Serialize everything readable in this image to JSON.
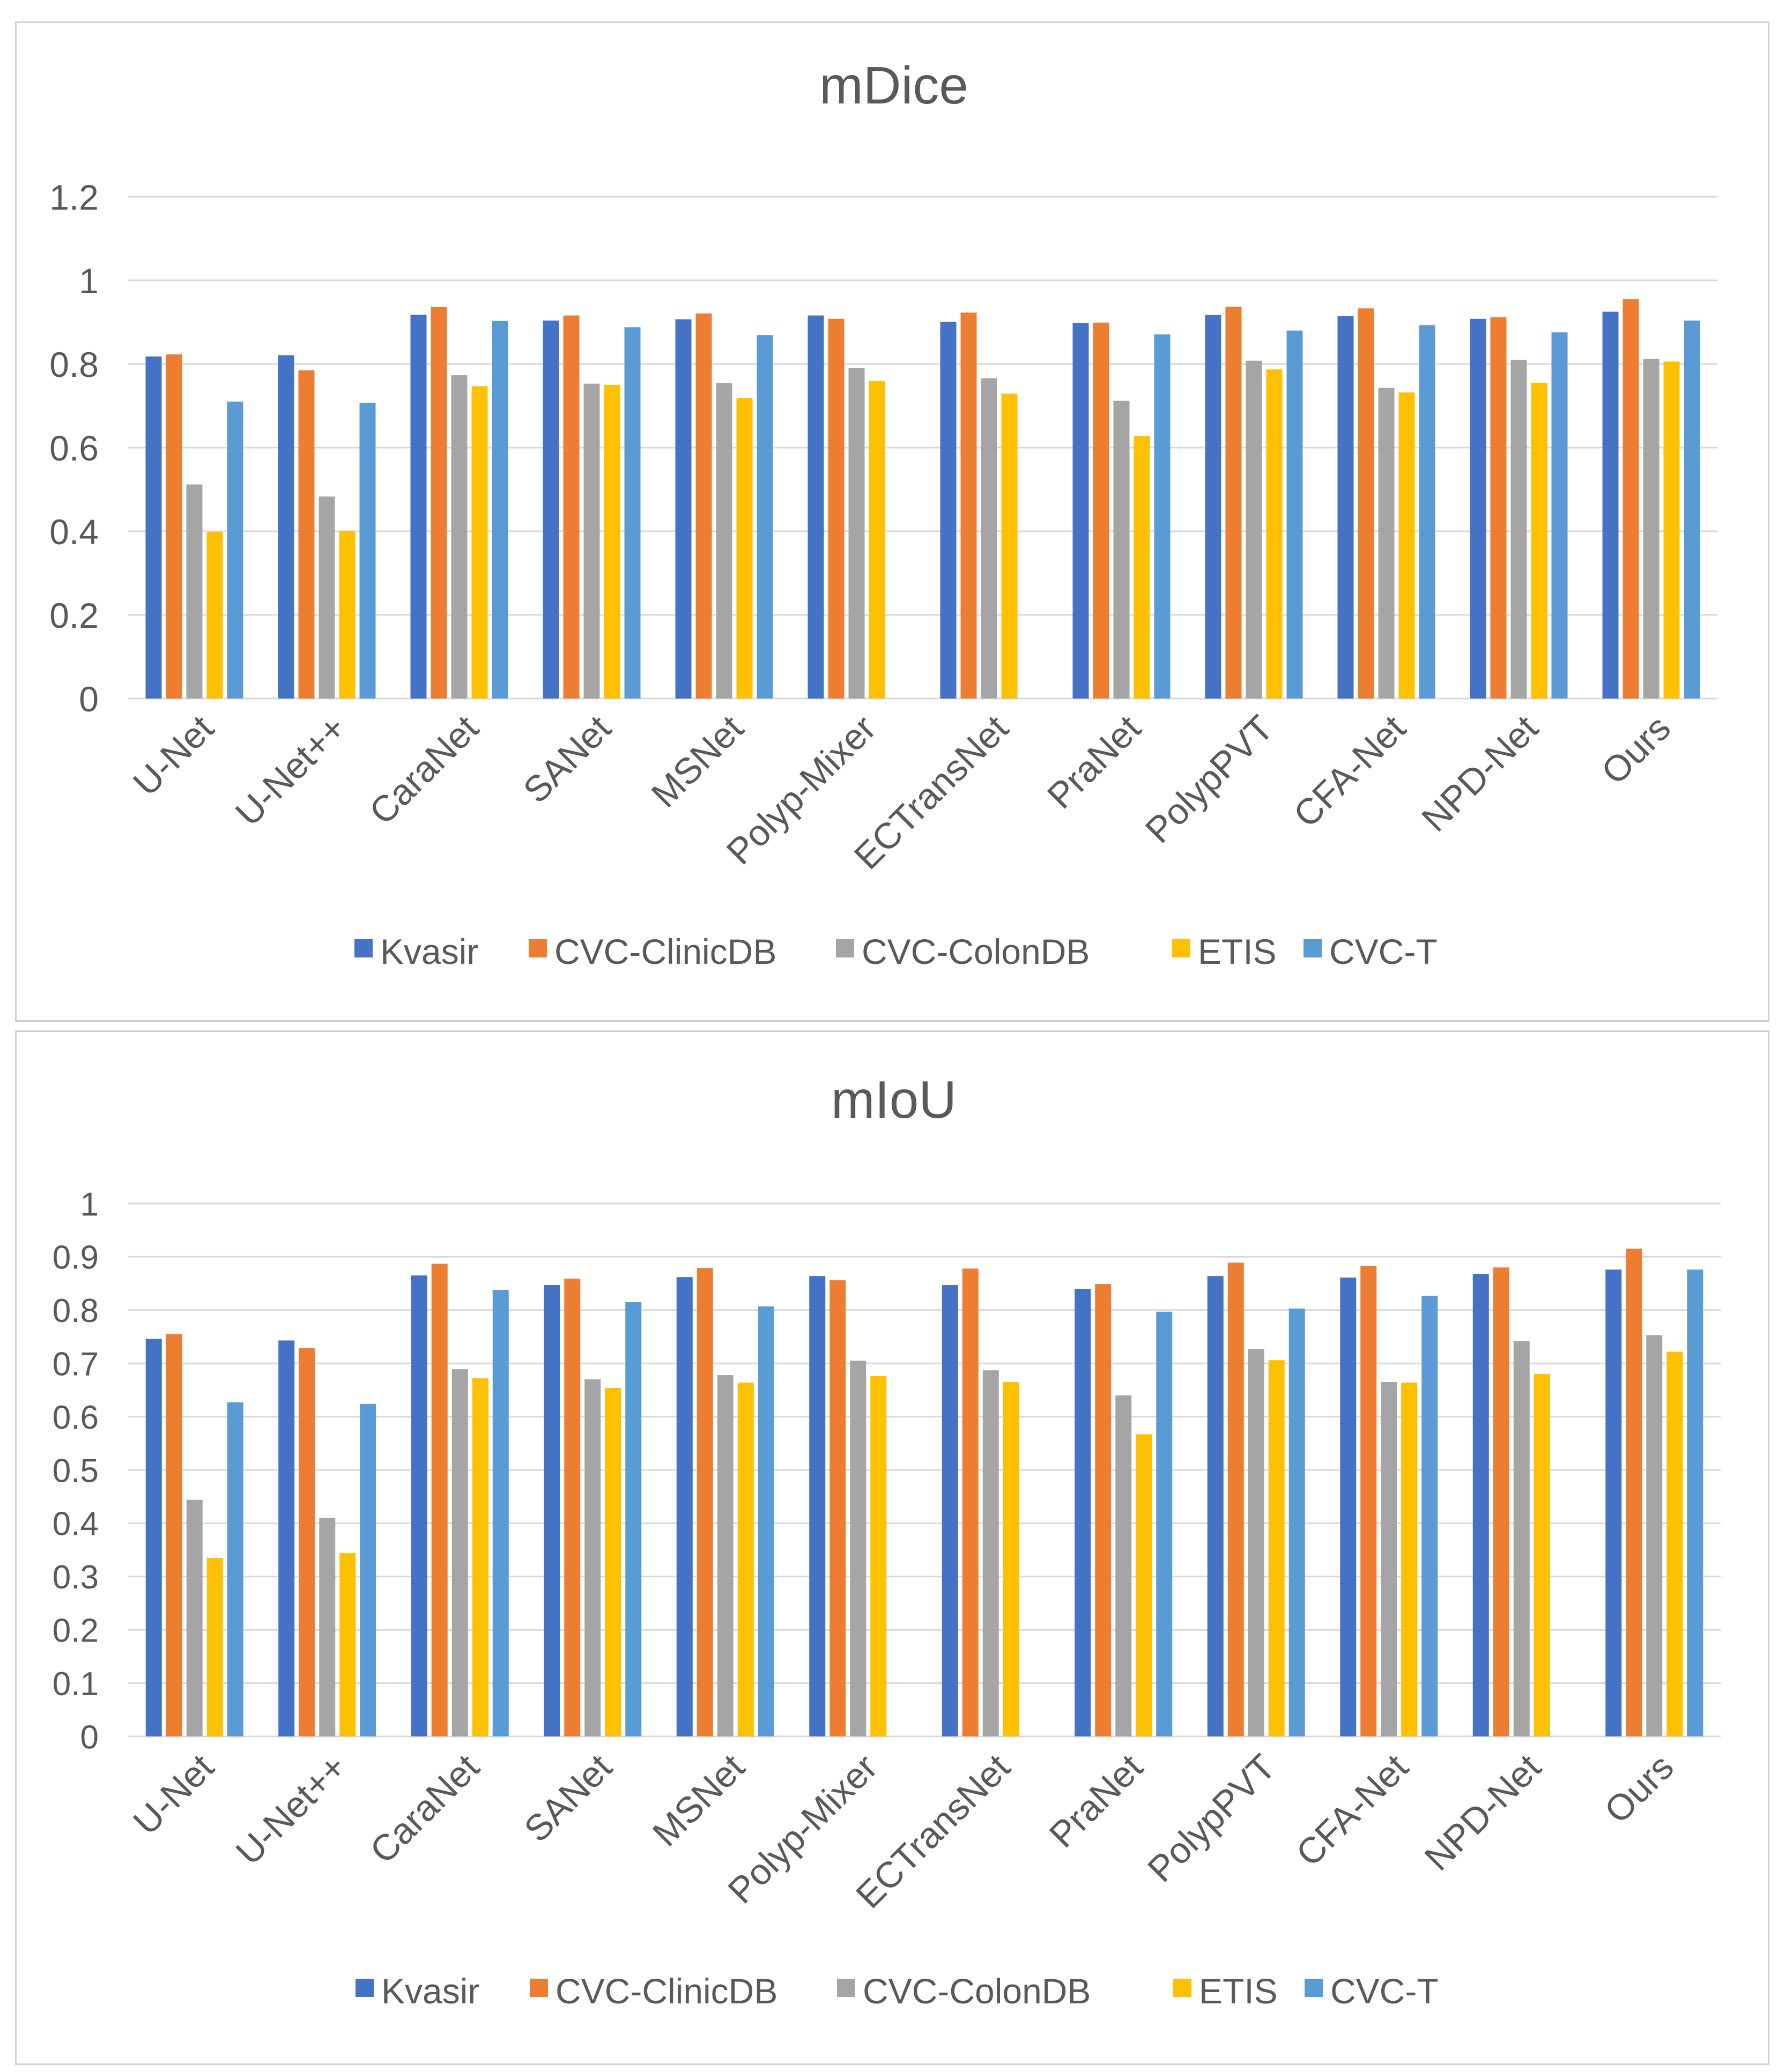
{
  "colors": {
    "Kvasir": "#4472c4",
    "CVC-ClinicDB": "#ed7d31",
    "CVC-ColonDB": "#a5a5a5",
    "ETIS": "#ffc000",
    "CVC-T": "#5b9bd5",
    "grid": "#d9d9d9",
    "text": "#595959"
  },
  "chart_data": [
    {
      "type": "bar",
      "title": "mDice",
      "xlabel": "",
      "ylabel": "",
      "ylim": [
        0,
        1.2
      ],
      "yticks": [
        "0",
        "0.2",
        "0.4",
        "0.6",
        "0.8",
        "1",
        "1.2"
      ],
      "grid": true,
      "legend_position": "bottom",
      "categories": [
        "U-Net",
        "U-Net++",
        "CaraNet",
        "SANet",
        "MSNet",
        "Polyp-Mixer",
        "ECTransNet",
        "PraNet",
        "PolypPVT",
        "CFA-Net",
        "NPD-Net",
        "Ours"
      ],
      "series": [
        {
          "name": "Kvasir",
          "values": [
            0.818,
            0.821,
            0.918,
            0.904,
            0.907,
            0.916,
            0.901,
            0.898,
            0.917,
            0.915,
            0.908,
            0.925
          ]
        },
        {
          "name": "CVC-ClinicDB",
          "values": [
            0.823,
            0.785,
            0.936,
            0.916,
            0.921,
            0.908,
            0.923,
            0.899,
            0.937,
            0.933,
            0.912,
            0.955
          ]
        },
        {
          "name": "CVC-ColonDB",
          "values": [
            0.512,
            0.483,
            0.773,
            0.753,
            0.755,
            0.791,
            0.766,
            0.712,
            0.808,
            0.743,
            0.81,
            0.812
          ]
        },
        {
          "name": "ETIS",
          "values": [
            0.398,
            0.401,
            0.747,
            0.75,
            0.719,
            0.759,
            0.729,
            0.628,
            0.787,
            0.732,
            0.755,
            0.806
          ]
        },
        {
          "name": "CVC-T",
          "values": [
            0.71,
            0.707,
            0.903,
            0.888,
            0.869,
            null,
            null,
            0.871,
            0.88,
            0.893,
            0.876,
            0.904
          ]
        }
      ]
    },
    {
      "type": "bar",
      "title": "mIoU",
      "xlabel": "",
      "ylabel": "",
      "ylim": [
        0,
        1
      ],
      "yticks": [
        "0",
        "0.1",
        "0.2",
        "0.3",
        "0.4",
        "0.5",
        "0.6",
        "0.7",
        "0.8",
        "0.9",
        "1"
      ],
      "grid": true,
      "legend_position": "bottom",
      "categories": [
        "U-Net",
        "U-Net++",
        "CaraNet",
        "SANet",
        "MSNet",
        "Polyp-Mixer",
        "ECTransNet",
        "PraNet",
        "PolypPVT",
        "CFA-Net",
        "NPD-Net",
        "Ours"
      ],
      "series": [
        {
          "name": "Kvasir",
          "values": [
            0.746,
            0.743,
            0.865,
            0.847,
            0.862,
            0.864,
            0.847,
            0.84,
            0.864,
            0.861,
            0.868,
            0.876
          ]
        },
        {
          "name": "CVC-ClinicDB",
          "values": [
            0.755,
            0.729,
            0.887,
            0.859,
            0.879,
            0.856,
            0.878,
            0.849,
            0.889,
            0.883,
            0.88,
            0.915
          ]
        },
        {
          "name": "CVC-ColonDB",
          "values": [
            0.444,
            0.41,
            0.689,
            0.67,
            0.678,
            0.705,
            0.687,
            0.64,
            0.727,
            0.665,
            0.742,
            0.753
          ]
        },
        {
          "name": "ETIS",
          "values": [
            0.335,
            0.344,
            0.672,
            0.654,
            0.664,
            0.676,
            0.665,
            0.567,
            0.706,
            0.664,
            0.68,
            0.722
          ]
        },
        {
          "name": "CVC-T",
          "values": [
            0.627,
            0.624,
            0.838,
            0.815,
            0.807,
            null,
            null,
            0.797,
            0.803,
            0.827,
            null,
            0.876
          ]
        }
      ]
    }
  ]
}
